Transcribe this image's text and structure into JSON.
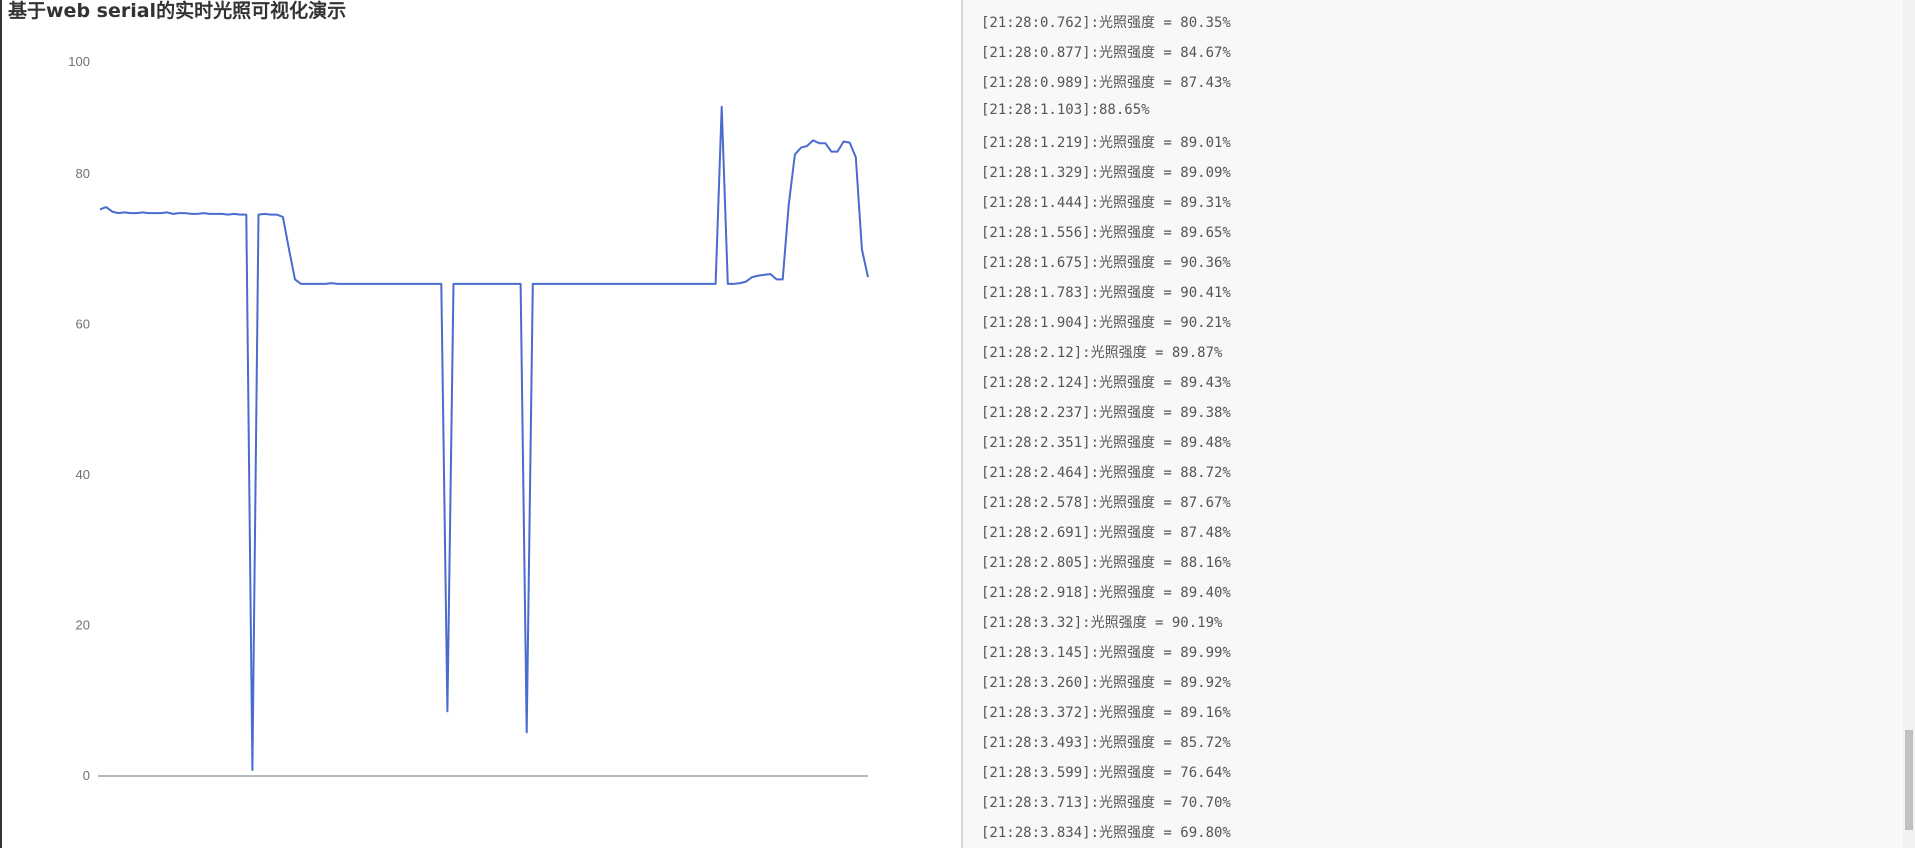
{
  "title": "基于web serial的实时光照可视化演示",
  "chart_data": {
    "type": "line",
    "title": "基于web serial的实时光照可视化演示",
    "xlabel": "",
    "ylabel": "",
    "ylim": [
      0,
      100
    ],
    "yticks": [
      "0",
      "20",
      "40",
      "60",
      "80",
      "100"
    ],
    "grid": false,
    "color": "#4a6bd0",
    "values": [
      75.3,
      75.6,
      75.0,
      74.8,
      74.9,
      74.8,
      74.8,
      74.9,
      74.8,
      74.8,
      74.8,
      74.9,
      74.7,
      74.8,
      74.8,
      74.7,
      74.7,
      74.8,
      74.7,
      74.7,
      74.7,
      74.6,
      74.7,
      74.6,
      74.6,
      0.8,
      74.6,
      74.7,
      74.6,
      74.6,
      74.3,
      70.0,
      66.0,
      65.4,
      65.4,
      65.4,
      65.4,
      65.4,
      65.5,
      65.4,
      65.4,
      65.4,
      65.4,
      65.4,
      65.4,
      65.4,
      65.4,
      65.4,
      65.4,
      65.4,
      65.4,
      65.4,
      65.4,
      65.4,
      65.4,
      65.4,
      65.4,
      8.6,
      65.4,
      65.4,
      65.4,
      65.4,
      65.4,
      65.4,
      65.4,
      65.4,
      65.4,
      65.4,
      65.4,
      65.4,
      5.8,
      65.4,
      65.4,
      65.4,
      65.4,
      65.4,
      65.4,
      65.4,
      65.4,
      65.4,
      65.4,
      65.4,
      65.4,
      65.4,
      65.4,
      65.4,
      65.4,
      65.4,
      65.4,
      65.4,
      65.4,
      65.4,
      65.4,
      65.4,
      65.4,
      65.4,
      65.4,
      65.4,
      65.4,
      65.4,
      65.4,
      65.4,
      92.0,
      65.4,
      65.4,
      65.5,
      65.7,
      66.3,
      66.5,
      66.6,
      66.7,
      66.0,
      66.0,
      76.0,
      83.5,
      84.7,
      85.0,
      86.0,
      85.5,
      85.5,
      84.0,
      84.0,
      85.8,
      85.6,
      83.0,
      70.0,
      66.3
    ]
  },
  "log": [
    "[21:28:0.762]:光照强度 = 80.35%",
    "[21:28:0.877]:光照强度 = 84.67%",
    "[21:28:0.989]:光照强度 = 87.43%",
    "[21:28:1.103]:88.65%",
    "[21:28:1.219]:光照强度 = 89.01%",
    "[21:28:1.329]:光照强度 = 89.09%",
    "[21:28:1.444]:光照强度 = 89.31%",
    "[21:28:1.556]:光照强度 = 89.65%",
    "[21:28:1.675]:光照强度 = 90.36%",
    "[21:28:1.783]:光照强度 = 90.41%",
    "[21:28:1.904]:光照强度 = 90.21%",
    "[21:28:2.12]:光照强度 = 89.87%",
    "[21:28:2.124]:光照强度 = 89.43%",
    "[21:28:2.237]:光照强度 = 89.38%",
    "[21:28:2.351]:光照强度 = 89.48%",
    "[21:28:2.464]:光照强度 = 88.72%",
    "[21:28:2.578]:光照强度 = 87.67%",
    "[21:28:2.691]:光照强度 = 87.48%",
    "[21:28:2.805]:光照强度 = 88.16%",
    "[21:28:2.918]:光照强度 = 89.40%",
    "[21:28:3.32]:光照强度 = 90.19%",
    "[21:28:3.145]:光照强度 = 89.99%",
    "[21:28:3.260]:光照强度 = 89.92%",
    "[21:28:3.372]:光照强度 = 89.16%",
    "[21:28:3.493]:光照强度 = 85.72%",
    "[21:28:3.599]:光照强度 = 76.64%",
    "[21:28:3.713]:光照强度 = 70.70%",
    "[21:28:3.834]:光照强度 = 69.80%"
  ]
}
